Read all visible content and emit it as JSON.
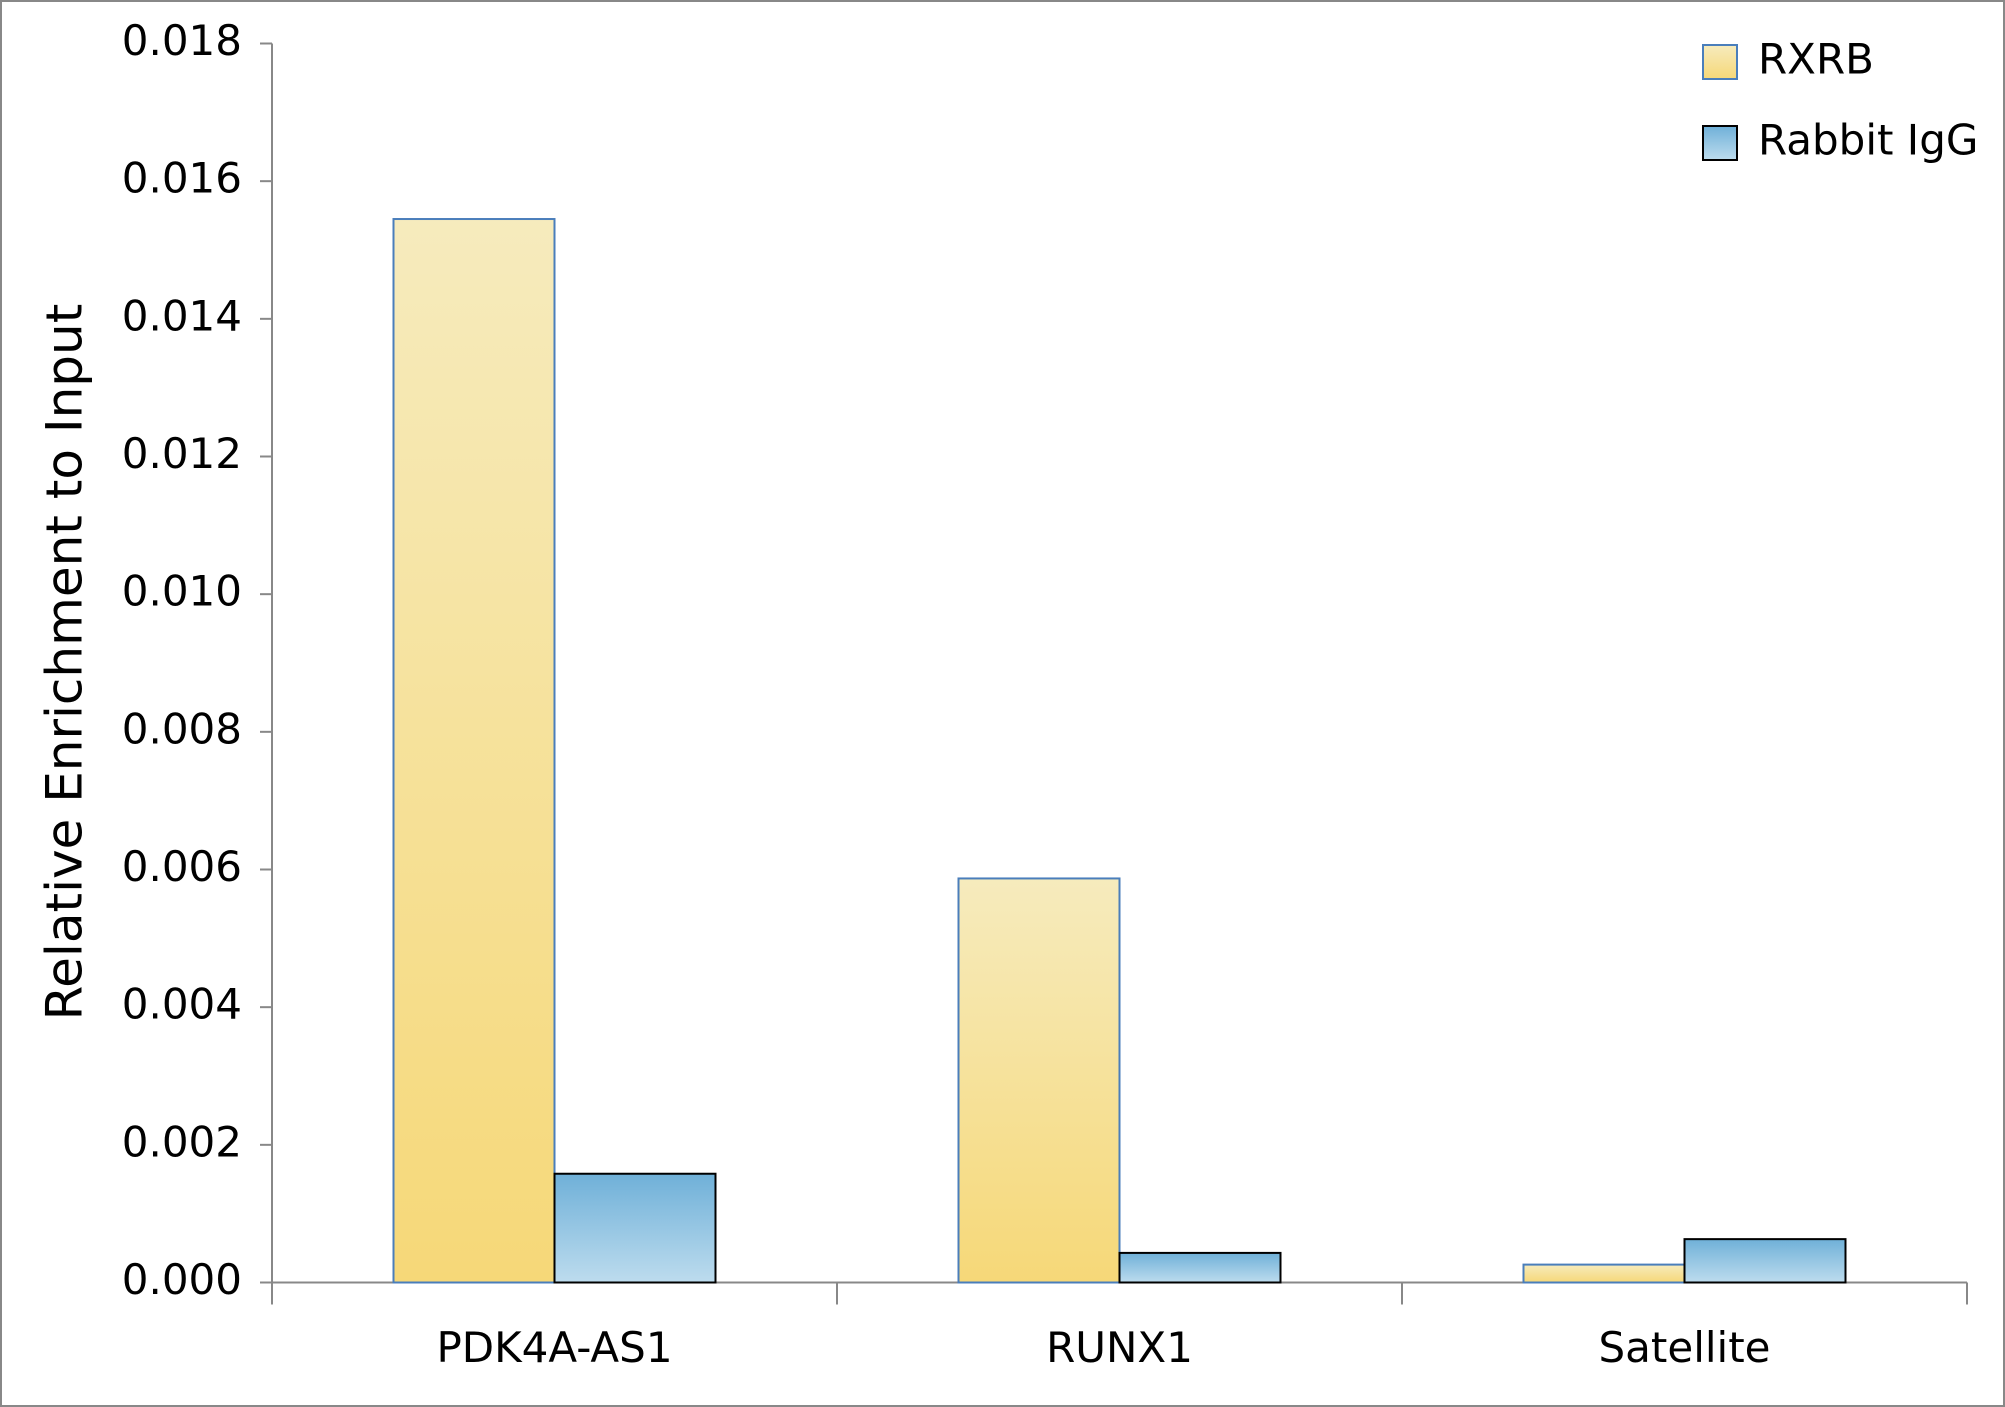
{
  "chart_data": {
    "type": "bar",
    "y_label": "Relative Enrichment to Input",
    "categories": [
      "PDK4A-AS1",
      "RUNX1",
      "Satellite"
    ],
    "series": [
      {
        "name": "RXRB",
        "color": "#f6d878",
        "values": [
          0.01545,
          0.00587,
          0.00026
        ]
      },
      {
        "name": "Rabbit IgG",
        "color": "#6fb0d8",
        "values": [
          0.00158,
          0.00043,
          0.00063
        ]
      }
    ],
    "ylim": [
      0,
      0.018
    ],
    "yticks": [
      {
        "value": 0,
        "label": "0.000"
      },
      {
        "value": 0.002,
        "label": "0.002"
      },
      {
        "value": 0.004,
        "label": "0.004"
      },
      {
        "value": 0.006,
        "label": "0.006"
      },
      {
        "value": 0.008,
        "label": "0.008"
      },
      {
        "value": 0.01,
        "label": "0.010"
      },
      {
        "value": 0.012,
        "label": "0.012"
      },
      {
        "value": 0.014,
        "label": "0.014"
      },
      {
        "value": 0.016,
        "label": "0.016"
      },
      {
        "value": 0.018,
        "label": "0.018"
      }
    ],
    "legend": "top-right"
  }
}
